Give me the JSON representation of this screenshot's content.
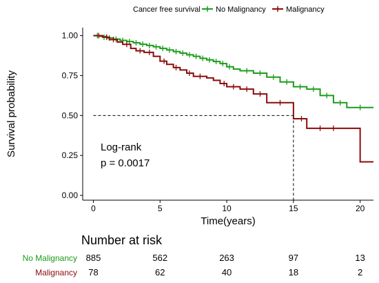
{
  "chart_data": {
    "type": "line",
    "subtype": "kaplan-meier",
    "legend": {
      "title": "Cancer free survival",
      "position": "top",
      "entries": [
        "No Malignancy",
        "Malignancy"
      ]
    },
    "xlabel": "Time(years)",
    "ylabel": "Survival probability",
    "xlim": [
      -0.8,
      21
    ],
    "ylim": [
      -0.03,
      1.05
    ],
    "xticks": [
      0,
      5,
      10,
      15,
      20
    ],
    "xtick_labels": [
      "0",
      "5",
      "10",
      "15",
      "20"
    ],
    "yticks": [
      0,
      0.25,
      0.5,
      0.75,
      1
    ],
    "ytick_labels": [
      "0.00",
      "0.25",
      "0.50",
      "0.75",
      "1.00"
    ],
    "grid": false,
    "colors": {
      "No Malignancy": "#1a9c1a",
      "Malignancy": "#8b0a0a"
    },
    "annotation": {
      "line1": "Log-rank",
      "line2": "p = 0.0017"
    },
    "median_survival": {
      "x": 15,
      "y": 0.5
    },
    "series": [
      {
        "name": "No Malignancy",
        "steps": [
          [
            0,
            1.0
          ],
          [
            0.5,
            0.995
          ],
          [
            1.0,
            0.985
          ],
          [
            1.5,
            0.978
          ],
          [
            2.0,
            0.97
          ],
          [
            2.5,
            0.963
          ],
          [
            3.0,
            0.955
          ],
          [
            3.5,
            0.946
          ],
          [
            4.0,
            0.938
          ],
          [
            4.5,
            0.93
          ],
          [
            5.0,
            0.92
          ],
          [
            5.5,
            0.91
          ],
          [
            6.0,
            0.9
          ],
          [
            6.5,
            0.89
          ],
          [
            7.0,
            0.88
          ],
          [
            7.5,
            0.87
          ],
          [
            8.0,
            0.858
          ],
          [
            8.5,
            0.848
          ],
          [
            9.0,
            0.838
          ],
          [
            9.5,
            0.825
          ],
          [
            10.0,
            0.805
          ],
          [
            10.5,
            0.79
          ],
          [
            11.0,
            0.78
          ],
          [
            12.0,
            0.765
          ],
          [
            13.0,
            0.74
          ],
          [
            14.0,
            0.71
          ],
          [
            15.0,
            0.68
          ],
          [
            16.0,
            0.665
          ],
          [
            17.0,
            0.625
          ],
          [
            18.0,
            0.58
          ],
          [
            19.0,
            0.55
          ],
          [
            20.0,
            0.55
          ]
        ],
        "censors": [
          [
            0.3,
            1.0
          ],
          [
            0.8,
            0.99
          ],
          [
            1.2,
            0.985
          ],
          [
            1.7,
            0.978
          ],
          [
            2.2,
            0.97
          ],
          [
            2.7,
            0.963
          ],
          [
            3.2,
            0.955
          ],
          [
            3.7,
            0.946
          ],
          [
            4.2,
            0.938
          ],
          [
            4.7,
            0.93
          ],
          [
            5.2,
            0.92
          ],
          [
            5.7,
            0.91
          ],
          [
            6.2,
            0.9
          ],
          [
            6.7,
            0.89
          ],
          [
            7.2,
            0.88
          ],
          [
            7.7,
            0.87
          ],
          [
            8.2,
            0.858
          ],
          [
            8.7,
            0.848
          ],
          [
            9.2,
            0.838
          ],
          [
            9.7,
            0.825
          ],
          [
            10.2,
            0.805
          ],
          [
            11.5,
            0.78
          ],
          [
            12.5,
            0.765
          ],
          [
            13.5,
            0.74
          ],
          [
            14.5,
            0.71
          ],
          [
            15.5,
            0.68
          ],
          [
            16.5,
            0.665
          ],
          [
            17.5,
            0.625
          ],
          [
            18.5,
            0.58
          ],
          [
            20.0,
            0.55
          ]
        ]
      },
      {
        "name": "Malignancy",
        "steps": [
          [
            0,
            1.0
          ],
          [
            0.7,
            0.99
          ],
          [
            1.2,
            0.975
          ],
          [
            1.8,
            0.96
          ],
          [
            2.2,
            0.945
          ],
          [
            2.8,
            0.92
          ],
          [
            3.2,
            0.905
          ],
          [
            3.8,
            0.895
          ],
          [
            4.5,
            0.87
          ],
          [
            5.0,
            0.84
          ],
          [
            5.5,
            0.82
          ],
          [
            6.0,
            0.8
          ],
          [
            6.5,
            0.785
          ],
          [
            7.0,
            0.765
          ],
          [
            7.5,
            0.745
          ],
          [
            8.5,
            0.735
          ],
          [
            9.0,
            0.72
          ],
          [
            9.5,
            0.7
          ],
          [
            10.0,
            0.68
          ],
          [
            11.0,
            0.665
          ],
          [
            12.0,
            0.635
          ],
          [
            13.0,
            0.58
          ],
          [
            15.0,
            0.48
          ],
          [
            16.0,
            0.42
          ],
          [
            20.0,
            0.21
          ]
        ],
        "censors": [
          [
            0.4,
            1.0
          ],
          [
            1.0,
            0.99
          ],
          [
            1.5,
            0.975
          ],
          [
            2.5,
            0.945
          ],
          [
            3.5,
            0.905
          ],
          [
            4.2,
            0.895
          ],
          [
            5.3,
            0.84
          ],
          [
            6.2,
            0.8
          ],
          [
            7.2,
            0.765
          ],
          [
            8.0,
            0.745
          ],
          [
            9.8,
            0.7
          ],
          [
            10.5,
            0.68
          ],
          [
            11.5,
            0.665
          ],
          [
            12.5,
            0.635
          ],
          [
            14.0,
            0.58
          ],
          [
            15.6,
            0.48
          ],
          [
            17.0,
            0.42
          ],
          [
            18.0,
            0.42
          ]
        ]
      }
    ]
  },
  "risk_table": {
    "title": "Number at risk",
    "rows": [
      {
        "label": "No Malignancy",
        "values": [
          "885",
          "562",
          "263",
          "97",
          "13"
        ]
      },
      {
        "label": "Malignancy",
        "values": [
          "78",
          "62",
          "40",
          "18",
          "2"
        ]
      }
    ]
  }
}
